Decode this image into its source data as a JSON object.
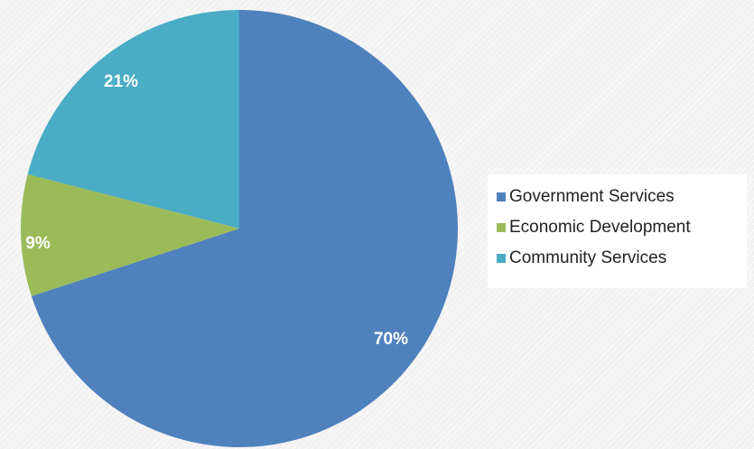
{
  "chart_data": {
    "type": "pie",
    "title": "",
    "start_angle_deg": 0,
    "direction": "clockwise",
    "legend_position": "right",
    "slices": [
      {
        "label": "Government Services",
        "value": 70,
        "value_label": "70%",
        "color": "#4f81bd"
      },
      {
        "label": "Economic Development",
        "value": 9,
        "value_label": "9%",
        "color": "#9bbb59"
      },
      {
        "label": "Community Services",
        "value": 21,
        "value_label": "21%",
        "color": "#4bacc6"
      }
    ]
  }
}
